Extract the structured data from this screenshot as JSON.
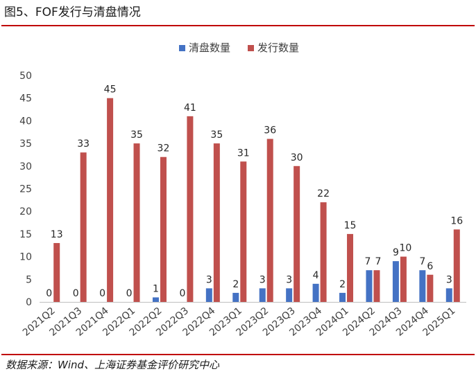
{
  "title": "图5、FOF发行与清盘情况",
  "source": "数据来源：Wind、上海证券基金评价研究中心",
  "chart_data": {
    "type": "bar",
    "categories": [
      "2021Q2",
      "2021Q3",
      "2021Q4",
      "2022Q1",
      "2022Q2",
      "2022Q3",
      "2022Q4",
      "2023Q1",
      "2023Q2",
      "2023Q3",
      "2023Q4",
      "2024Q1",
      "2024Q2",
      "2024Q3",
      "2024Q4",
      "2025Q1"
    ],
    "series": [
      {
        "name": "清盘数量",
        "color": "#4472c4",
        "values": [
          0,
          0,
          0,
          0,
          1,
          0,
          3,
          2,
          3,
          3,
          4,
          2,
          7,
          9,
          7,
          3
        ]
      },
      {
        "name": "发行数量",
        "color": "#c0504d",
        "values": [
          13,
          33,
          45,
          35,
          32,
          41,
          35,
          31,
          36,
          30,
          22,
          15,
          7,
          10,
          6,
          16
        ]
      }
    ],
    "ylim": [
      0,
      50
    ],
    "yticks": [
      0,
      5,
      10,
      15,
      20,
      25,
      30,
      35,
      40,
      45,
      50
    ],
    "grid": false,
    "legend_position": "top-center",
    "data_labels": true,
    "xlabel": "",
    "ylabel": ""
  }
}
